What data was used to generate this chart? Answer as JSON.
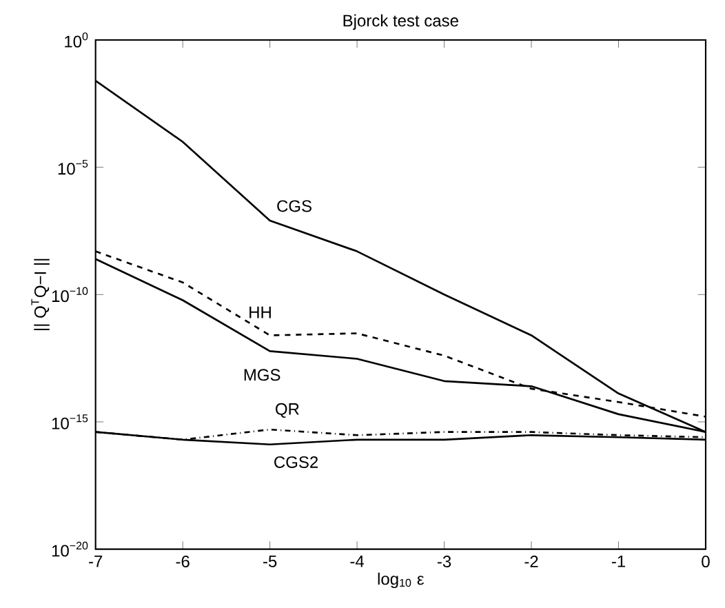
{
  "chart_data": {
    "type": "line",
    "title": "Bjorck test case",
    "xlabel": "log$_{10}$ ε",
    "ylabel": "|| Q$^{T}$Q−I ||",
    "log": "y",
    "grid": false,
    "marker": "none",
    "x": [
      -7,
      -6,
      -5,
      -4,
      -3,
      -2,
      -1,
      0
    ],
    "xlim": [
      -7,
      0
    ],
    "xticks": [
      -7,
      -6,
      -5,
      -4,
      -3,
      -2,
      -1,
      0
    ],
    "ylim": [
      1e-20,
      1
    ],
    "yticks": [
      {
        "value": 1e-20,
        "label": "10$^{−20}$"
      },
      {
        "value": 1e-15,
        "label": "10$^{−15}$"
      },
      {
        "value": 1e-10,
        "label": "10$^{−10}$"
      },
      {
        "value": 1e-05,
        "label": "10$^{−5}$"
      },
      {
        "value": 1,
        "label": "10$^{0}$"
      }
    ],
    "series": [
      {
        "name": "CGS",
        "color": "#000000",
        "line_style": "solid",
        "values": [
          0.025,
          0.0001,
          8e-08,
          5e-09,
          1e-10,
          2.5e-12,
          1.3e-14,
          4e-16
        ]
      },
      {
        "name": "HH",
        "color": "#000000",
        "line_style": "dashed",
        "values": [
          5e-09,
          3e-10,
          2.5e-12,
          3e-12,
          4e-13,
          2e-14,
          6e-15,
          1.6e-15
        ]
      },
      {
        "name": "MGS",
        "color": "#000000",
        "line_style": "solid",
        "values": [
          2.5e-09,
          6e-11,
          6e-13,
          3e-13,
          4e-14,
          2.5e-14,
          2e-15,
          4e-16
        ]
      },
      {
        "name": "QR",
        "color": "#000000",
        "line_style": "dashdot",
        "values": [
          4e-16,
          2e-16,
          5e-16,
          3e-16,
          4e-16,
          4e-16,
          3e-16,
          2.5e-16
        ]
      },
      {
        "name": "CGS2",
        "color": "#000000",
        "line_style": "solid",
        "values": [
          4e-16,
          2e-16,
          1.3e-16,
          2e-16,
          2e-16,
          3e-16,
          2.5e-16,
          2e-16
        ]
      }
    ]
  }
}
